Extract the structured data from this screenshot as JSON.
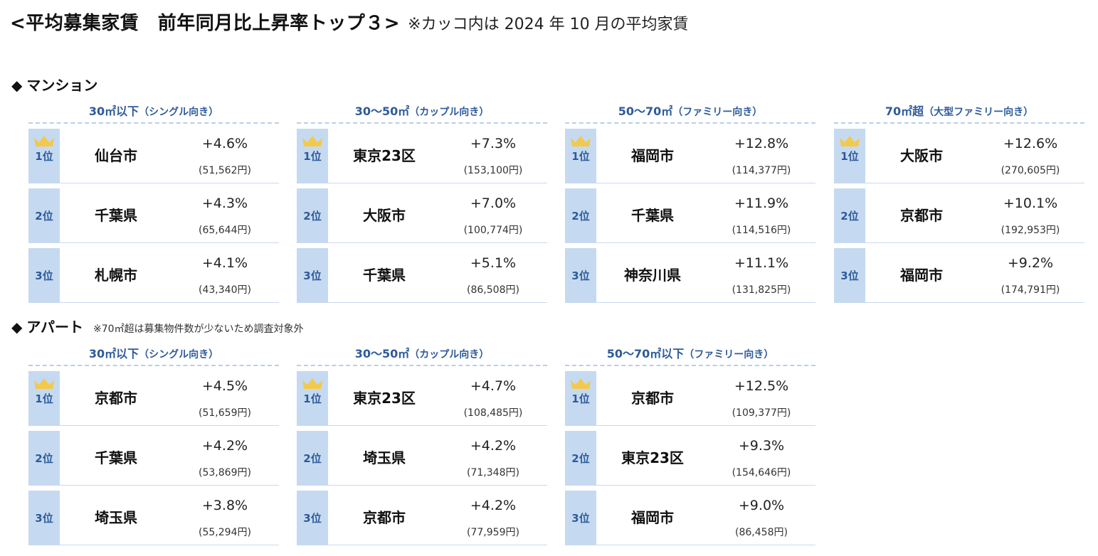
{
  "title": {
    "main": "<平均募集家賃　前年同月比上昇率トップ３>",
    "note": "※カッコ内は 2024 年 10 月の平均家賃"
  },
  "mansion": {
    "label": "マンション",
    "marker": "◆",
    "categories": [
      {
        "name": "30㎡以下",
        "sub": "（シングル向き）",
        "ranks": [
          {
            "rank": "1位",
            "city": "仙台市",
            "rate": "+4.6%",
            "rent": "(51,562円)"
          },
          {
            "rank": "2位",
            "city": "千葉県",
            "rate": "+4.3%",
            "rent": "(65,644円)"
          },
          {
            "rank": "3位",
            "city": "札幌市",
            "rate": "+4.1%",
            "rent": "(43,340円)"
          }
        ]
      },
      {
        "name": "30～50㎡",
        "sub": "（カップル向き）",
        "ranks": [
          {
            "rank": "1位",
            "city": "東京23区",
            "rate": "+7.3%",
            "rent": "(153,100円)"
          },
          {
            "rank": "2位",
            "city": "大阪市",
            "rate": "+7.0%",
            "rent": "(100,774円)"
          },
          {
            "rank": "3位",
            "city": "千葉県",
            "rate": "+5.1%",
            "rent": "(86,508円)"
          }
        ]
      },
      {
        "name": "50～70㎡",
        "sub": "（ファミリー向き）",
        "ranks": [
          {
            "rank": "1位",
            "city": "福岡市",
            "rate": "+12.8%",
            "rent": "(114,377円)"
          },
          {
            "rank": "2位",
            "city": "千葉県",
            "rate": "+11.9%",
            "rent": "(114,516円)"
          },
          {
            "rank": "3位",
            "city": "神奈川県",
            "rate": "+11.1%",
            "rent": "(131,825円)"
          }
        ]
      },
      {
        "name": "70㎡超",
        "sub": "（大型ファミリー向き）",
        "ranks": [
          {
            "rank": "1位",
            "city": "大阪市",
            "rate": "+12.6%",
            "rent": "(270,605円)"
          },
          {
            "rank": "2位",
            "city": "京都市",
            "rate": "+10.1%",
            "rent": "(192,953円)"
          },
          {
            "rank": "3位",
            "city": "福岡市",
            "rate": "+9.2%",
            "rent": "(174,791円)"
          }
        ]
      }
    ]
  },
  "apart": {
    "label": "アパート",
    "marker": "◆",
    "note": "※70㎡超は募集物件数が少ないため調査対象外",
    "categories": [
      {
        "name": "30㎡以下",
        "sub": "（シングル向き）",
        "ranks": [
          {
            "rank": "1位",
            "city": "京都市",
            "rate": "+4.5%",
            "rent": "(51,659円)"
          },
          {
            "rank": "2位",
            "city": "千葉県",
            "rate": "+4.2%",
            "rent": "(53,869円)"
          },
          {
            "rank": "3位",
            "city": "埼玉県",
            "rate": "+3.8%",
            "rent": "(55,294円)"
          }
        ]
      },
      {
        "name": "30～50㎡",
        "sub": "（カップル向き）",
        "ranks": [
          {
            "rank": "1位",
            "city": "東京23区",
            "rate": "+4.7%",
            "rent": "(108,485円)"
          },
          {
            "rank": "2位",
            "city": "埼玉県",
            "rate": "+4.2%",
            "rent": "(71,348円)"
          },
          {
            "rank": "3位",
            "city": "京都市",
            "rate": "+4.2%",
            "rent": "(77,959円)"
          }
        ]
      },
      {
        "name": "50～70㎡以下",
        "sub": "（ファミリー向き）",
        "ranks": [
          {
            "rank": "1位",
            "city": "京都市",
            "rate": "+12.5%",
            "rent": "(109,377円)"
          },
          {
            "rank": "2位",
            "city": "東京23区",
            "rate": "+9.3%",
            "rent": "(154,646円)"
          },
          {
            "rank": "3位",
            "city": "福岡市",
            "rate": "+9.0%",
            "rent": "(86,458円)"
          }
        ]
      }
    ]
  },
  "colors": {
    "rank_bg": "#c5daf0",
    "accent": "#2e5a9c",
    "crown": "#f2c94c"
  }
}
